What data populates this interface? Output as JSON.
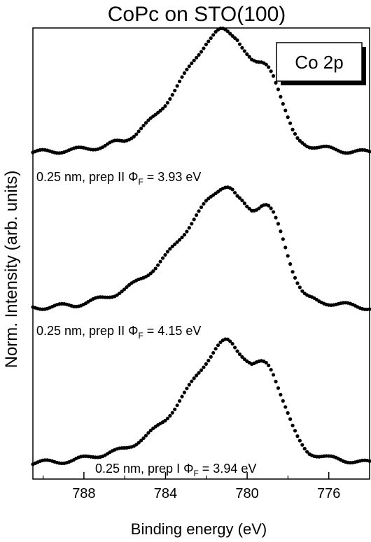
{
  "chart_data": {
    "type": "scatter",
    "title": "CoPc on STO(100)",
    "xlabel": "Binding energy (eV)",
    "ylabel": "Norm. Intensity (arb. units)",
    "xlim": [
      790.5,
      774
    ],
    "x_reversed": true,
    "y_ticks_shown": false,
    "grid": false,
    "x_ticks": [
      788,
      784,
      780,
      776
    ],
    "legend": {
      "text": "Co 2p",
      "placement": "top-right"
    },
    "series": [
      {
        "annotation": {
          "prefix": "0.25 nm, prep II ",
          "phi_text": "Φ",
          "phi_sub": "F",
          "suffix": " = 3.93 eV"
        },
        "offset": 2.0,
        "points": [
          [
            790.5,
            0.0
          ],
          [
            789.5,
            0.01
          ],
          [
            788.5,
            0.02
          ],
          [
            788,
            0.03
          ],
          [
            787.5,
            0.04
          ],
          [
            787,
            0.05
          ],
          [
            786.5,
            0.08
          ],
          [
            786,
            0.1
          ],
          [
            785.5,
            0.15
          ],
          [
            785,
            0.22
          ],
          [
            784.5,
            0.3
          ],
          [
            784,
            0.4
          ],
          [
            783.5,
            0.52
          ],
          [
            783,
            0.65
          ],
          [
            782.5,
            0.78
          ],
          [
            782,
            0.9
          ],
          [
            781.5,
            0.98
          ],
          [
            781.25,
            1.0
          ],
          [
            781,
            0.99
          ],
          [
            780.5,
            0.94
          ],
          [
            780,
            0.8
          ],
          [
            779.75,
            0.74
          ],
          [
            779.5,
            0.72
          ],
          [
            779.25,
            0.73
          ],
          [
            779,
            0.72
          ],
          [
            778.75,
            0.66
          ],
          [
            778.5,
            0.54
          ],
          [
            778.25,
            0.4
          ],
          [
            778,
            0.27
          ],
          [
            777.75,
            0.16
          ],
          [
            777.5,
            0.1
          ],
          [
            777,
            0.06
          ],
          [
            776.5,
            0.04
          ],
          [
            776,
            0.03
          ],
          [
            775.5,
            0.02
          ],
          [
            775,
            0.01
          ],
          [
            774,
            0.0
          ]
        ]
      },
      {
        "annotation": {
          "prefix": "0.25 nm, prep II ",
          "phi_text": "Φ",
          "phi_sub": "F",
          "suffix": " = 4.15 eV"
        },
        "offset": 1.0,
        "points": [
          [
            790.5,
            0.0
          ],
          [
            789.5,
            0.01
          ],
          [
            788.5,
            0.02
          ],
          [
            788,
            0.04
          ],
          [
            787.5,
            0.06
          ],
          [
            787,
            0.08
          ],
          [
            786.5,
            0.11
          ],
          [
            786,
            0.15
          ],
          [
            785.5,
            0.2
          ],
          [
            785,
            0.26
          ],
          [
            784.5,
            0.33
          ],
          [
            784,
            0.42
          ],
          [
            783.5,
            0.52
          ],
          [
            783,
            0.63
          ],
          [
            782.5,
            0.75
          ],
          [
            782,
            0.86
          ],
          [
            781.5,
            0.95
          ],
          [
            781.25,
            0.99
          ],
          [
            781,
            1.0
          ],
          [
            780.75,
            0.97
          ],
          [
            780.5,
            0.9
          ],
          [
            780,
            0.82
          ],
          [
            779.75,
            0.8
          ],
          [
            779.5,
            0.82
          ],
          [
            779.25,
            0.85
          ],
          [
            779,
            0.84
          ],
          [
            778.75,
            0.78
          ],
          [
            778.5,
            0.68
          ],
          [
            778.25,
            0.56
          ],
          [
            778,
            0.43
          ],
          [
            777.75,
            0.3
          ],
          [
            777.5,
            0.2
          ],
          [
            777.25,
            0.12
          ],
          [
            777,
            0.08
          ],
          [
            776.5,
            0.05
          ],
          [
            776,
            0.04
          ],
          [
            775.5,
            0.03
          ],
          [
            775,
            0.02
          ],
          [
            774,
            0.0
          ]
        ]
      },
      {
        "annotation": {
          "prefix": "0.25 nm, prep I ",
          "phi_text": "Φ",
          "phi_sub": "F",
          "suffix": " = 3.94 eV"
        },
        "offset": 0.0,
        "points": [
          [
            790.5,
            0.0
          ],
          [
            789.5,
            0.01
          ],
          [
            788.5,
            0.02
          ],
          [
            788,
            0.04
          ],
          [
            787.5,
            0.06
          ],
          [
            787,
            0.07
          ],
          [
            786.5,
            0.09
          ],
          [
            786,
            0.12
          ],
          [
            785.5,
            0.16
          ],
          [
            785,
            0.21
          ],
          [
            784.5,
            0.28
          ],
          [
            784,
            0.36
          ],
          [
            783.5,
            0.46
          ],
          [
            783,
            0.58
          ],
          [
            782.5,
            0.71
          ],
          [
            782,
            0.83
          ],
          [
            781.5,
            0.94
          ],
          [
            781.25,
            0.98
          ],
          [
            781,
            1.0
          ],
          [
            780.75,
            0.98
          ],
          [
            780.5,
            0.93
          ],
          [
            780,
            0.84
          ],
          [
            779.75,
            0.8
          ],
          [
            779.5,
            0.81
          ],
          [
            779.25,
            0.82
          ],
          [
            779,
            0.81
          ],
          [
            778.75,
            0.75
          ],
          [
            778.5,
            0.64
          ],
          [
            778.25,
            0.52
          ],
          [
            778,
            0.4
          ],
          [
            777.75,
            0.28
          ],
          [
            777.5,
            0.19
          ],
          [
            777.25,
            0.13
          ],
          [
            777,
            0.09
          ],
          [
            776.5,
            0.06
          ],
          [
            776,
            0.04
          ],
          [
            775.5,
            0.03
          ],
          [
            775,
            0.02
          ],
          [
            774,
            0.0
          ]
        ]
      }
    ]
  }
}
